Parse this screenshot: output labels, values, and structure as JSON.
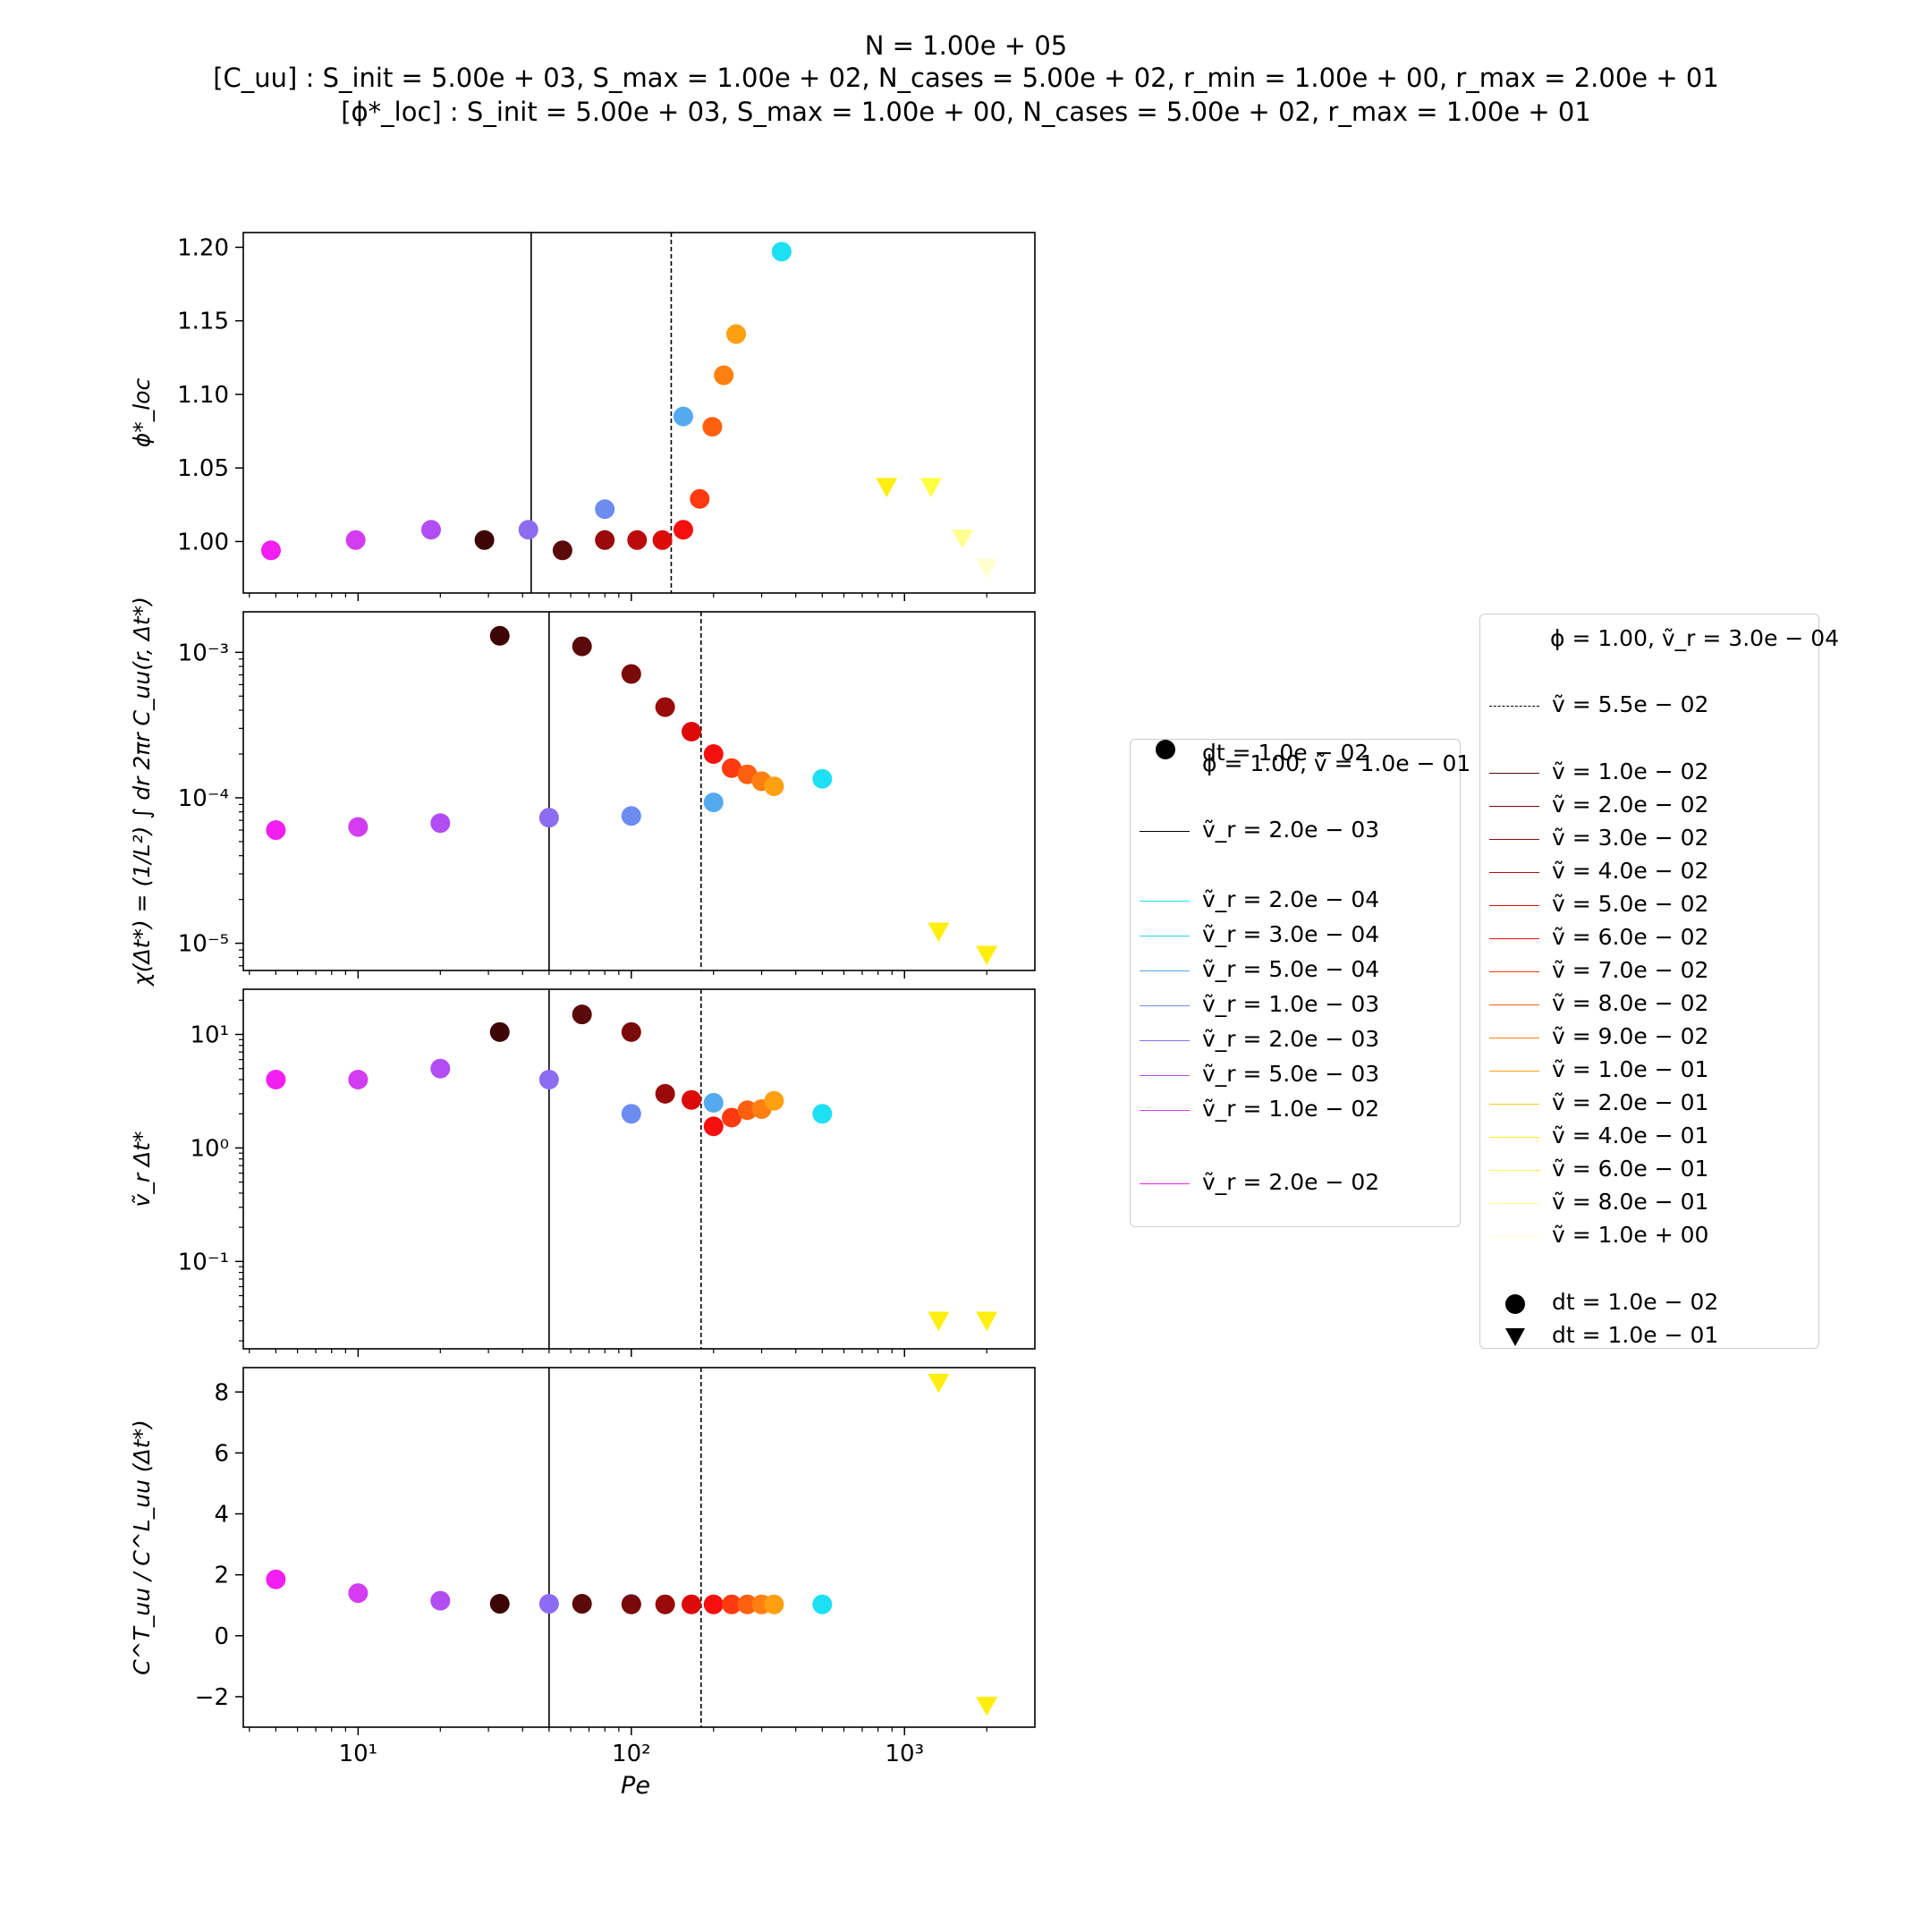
{
  "titles": [
    "N = 1.00e + 05",
    "[C_uu] : S_init = 5.00e + 03, S_max = 1.00e + 02, N_cases = 5.00e + 02, r_min = 1.00e + 00, r_max = 2.00e + 01",
    "[ϕ*_loc] : S_init = 5.00e + 03, S_max = 1.00e + 00, N_cases = 5.00e + 02, r_max = 1.00e + 01"
  ],
  "legend_left": {
    "title": "ϕ = 1.00, ṽ = 1.0e − 01",
    "entries": [
      {
        "label": "ṽ_r = 2.0e − 03",
        "kind": "line",
        "color": "#000000"
      },
      {
        "label": "ṽ_r = 2.0e − 04",
        "kind": "line",
        "color": "#1ee0f5"
      },
      {
        "label": "ṽ_r = 3.0e − 04",
        "kind": "line",
        "color": "#2ad2f2"
      },
      {
        "label": "ṽ_r = 5.0e − 04",
        "kind": "line",
        "color": "#55aaef"
      },
      {
        "label": "ṽ_r = 1.0e − 03",
        "kind": "line",
        "color": "#6c8cf0"
      },
      {
        "label": "ṽ_r = 2.0e − 03",
        "kind": "line",
        "color": "#8c6cf0"
      },
      {
        "label": "ṽ_r = 5.0e − 03",
        "kind": "line",
        "color": "#b14df2"
      },
      {
        "label": "ṽ_r = 1.0e − 02",
        "kind": "line",
        "color": "#d43cf2"
      },
      {
        "label": "ṽ_r = 2.0e − 02",
        "kind": "line",
        "color": "#f21ef2"
      },
      {
        "label": "dt = 1.0e − 02",
        "kind": "circle",
        "color": "#000000"
      }
    ]
  },
  "legend_right": {
    "title": "ϕ = 1.00, ṽ_r = 3.0e − 04",
    "entries": [
      {
        "label": "ṽ = 5.5e − 02",
        "kind": "dashed",
        "color": "#000000"
      },
      {
        "label": "ṽ = 1.0e − 02",
        "kind": "line",
        "color": "#5a0a0a"
      },
      {
        "label": "ṽ = 2.0e − 02",
        "kind": "line",
        "color": "#7a0a0a"
      },
      {
        "label": "ṽ = 3.0e − 02",
        "kind": "line",
        "color": "#990a0a"
      },
      {
        "label": "ṽ = 4.0e − 02",
        "kind": "line",
        "color": "#bb0a0a"
      },
      {
        "label": "ṽ = 5.0e − 02",
        "kind": "line",
        "color": "#dd0a0a"
      },
      {
        "label": "ṽ = 6.0e − 02",
        "kind": "line",
        "color": "#f50f0f"
      },
      {
        "label": "ṽ = 7.0e − 02",
        "kind": "line",
        "color": "#ff3a10"
      },
      {
        "label": "ṽ = 8.0e − 02",
        "kind": "line",
        "color": "#ff6010"
      },
      {
        "label": "ṽ = 9.0e − 02",
        "kind": "line",
        "color": "#ff8010"
      },
      {
        "label": "ṽ = 1.0e − 01",
        "kind": "line",
        "color": "#ffa010"
      },
      {
        "label": "ṽ = 2.0e − 01",
        "kind": "line",
        "color": "#ffcc10"
      },
      {
        "label": "ṽ = 4.0e − 01",
        "kind": "line",
        "color": "#ffee10"
      },
      {
        "label": "ṽ = 6.0e − 01",
        "kind": "line",
        "color": "#ffff40"
      },
      {
        "label": "ṽ = 8.0e − 01",
        "kind": "line",
        "color": "#ffff90"
      },
      {
        "label": "ṽ = 1.0e + 00",
        "kind": "line",
        "color": "#ffffd0"
      },
      {
        "label": "dt = 1.0e − 02",
        "kind": "circle",
        "color": "#000000"
      },
      {
        "label": "dt = 1.0e − 01",
        "kind": "triangle",
        "color": "#000000"
      }
    ]
  },
  "chart_data": [
    {
      "type": "scatter",
      "xscale": "log",
      "yscale": "linear",
      "xlim": [
        3.8,
        3000
      ],
      "ylim": [
        0.965,
        1.21
      ],
      "ylabel": "ϕ*_loc",
      "xlabel": "",
      "yticks": [
        1.0,
        1.05,
        1.1,
        1.15,
        1.2
      ],
      "ytick_labels": [
        "1.00",
        "1.05",
        "1.10",
        "1.15",
        "1.20"
      ],
      "vlines": [
        {
          "x": 43,
          "style": "solid"
        },
        {
          "x": 140,
          "style": "dashed"
        }
      ],
      "points": [
        {
          "x": 4.8,
          "y": 0.994,
          "color": "#f21ef2",
          "marker": "circle"
        },
        {
          "x": 9.8,
          "y": 1.001,
          "color": "#d43cf2",
          "marker": "circle"
        },
        {
          "x": 18.5,
          "y": 1.008,
          "color": "#b14df2",
          "marker": "circle"
        },
        {
          "x": 29,
          "y": 1.001,
          "color": "#3d0505",
          "marker": "circle"
        },
        {
          "x": 42,
          "y": 1.008,
          "color": "#8c6cf0",
          "marker": "circle"
        },
        {
          "x": 56,
          "y": 0.994,
          "color": "#5a0a0a",
          "marker": "circle"
        },
        {
          "x": 80,
          "y": 1.022,
          "color": "#6c8cf0",
          "marker": "circle"
        },
        {
          "x": 80,
          "y": 1.001,
          "color": "#990a0a",
          "marker": "circle"
        },
        {
          "x": 105,
          "y": 1.001,
          "color": "#bb0a0a",
          "marker": "circle"
        },
        {
          "x": 130,
          "y": 1.001,
          "color": "#dd0a0a",
          "marker": "circle"
        },
        {
          "x": 155,
          "y": 1.008,
          "color": "#f50f0f",
          "marker": "circle"
        },
        {
          "x": 155,
          "y": 1.085,
          "color": "#55aaef",
          "marker": "circle"
        },
        {
          "x": 178,
          "y": 1.029,
          "color": "#ff3a10",
          "marker": "circle"
        },
        {
          "x": 198,
          "y": 1.078,
          "color": "#ff6010",
          "marker": "circle"
        },
        {
          "x": 218,
          "y": 1.113,
          "color": "#ff8010",
          "marker": "circle"
        },
        {
          "x": 242,
          "y": 1.141,
          "color": "#ffa010",
          "marker": "circle"
        },
        {
          "x": 355,
          "y": 1.197,
          "color": "#1ee0f5",
          "marker": "circle"
        },
        {
          "x": 860,
          "y": 1.037,
          "color": "#ffee10",
          "marker": "triangle"
        },
        {
          "x": 1250,
          "y": 1.037,
          "color": "#ffff40",
          "marker": "triangle"
        },
        {
          "x": 1630,
          "y": 1.002,
          "color": "#ffff90",
          "marker": "triangle"
        },
        {
          "x": 2000,
          "y": 0.982,
          "color": "#ffffd0",
          "marker": "triangle"
        }
      ]
    },
    {
      "type": "scatter",
      "xscale": "log",
      "yscale": "log",
      "xlim": [
        3.8,
        3000
      ],
      "ylim": [
        6.5e-06,
        0.0019
      ],
      "ylabel": "χ(Δt*) = (1/L²) ∫ dr 2πr C_uu(r, Δt*)",
      "xlabel": "",
      "yticks": [
        1e-05,
        0.0001,
        0.001
      ],
      "ytick_labels": [
        "10⁻⁵",
        "10⁻⁴",
        "10⁻³"
      ],
      "vlines": [
        {
          "x": 50,
          "style": "solid"
        },
        {
          "x": 180,
          "style": "dashed"
        }
      ],
      "points": [
        {
          "x": 5,
          "y": 6e-05,
          "color": "#f21ef2",
          "marker": "circle"
        },
        {
          "x": 10,
          "y": 6.3e-05,
          "color": "#d43cf2",
          "marker": "circle"
        },
        {
          "x": 20,
          "y": 6.7e-05,
          "color": "#b14df2",
          "marker": "circle"
        },
        {
          "x": 33,
          "y": 0.0013,
          "color": "#3d0505",
          "marker": "circle"
        },
        {
          "x": 50,
          "y": 7.3e-05,
          "color": "#8c6cf0",
          "marker": "circle"
        },
        {
          "x": 66,
          "y": 0.0011,
          "color": "#5a0a0a",
          "marker": "circle"
        },
        {
          "x": 100,
          "y": 0.00071,
          "color": "#7a0a0a",
          "marker": "circle"
        },
        {
          "x": 100,
          "y": 7.5e-05,
          "color": "#6c8cf0",
          "marker": "circle"
        },
        {
          "x": 133,
          "y": 0.00042,
          "color": "#990a0a",
          "marker": "circle"
        },
        {
          "x": 166,
          "y": 0.000285,
          "color": "#dd0a0a",
          "marker": "circle"
        },
        {
          "x": 200,
          "y": 0.0002,
          "color": "#f50f0f",
          "marker": "circle"
        },
        {
          "x": 200,
          "y": 9.3e-05,
          "color": "#55aaef",
          "marker": "circle"
        },
        {
          "x": 233,
          "y": 0.00016,
          "color": "#ff3a10",
          "marker": "circle"
        },
        {
          "x": 266,
          "y": 0.000145,
          "color": "#ff6010",
          "marker": "circle"
        },
        {
          "x": 300,
          "y": 0.00013,
          "color": "#ff8010",
          "marker": "circle"
        },
        {
          "x": 333,
          "y": 0.00012,
          "color": "#ffa010",
          "marker": "circle"
        },
        {
          "x": 500,
          "y": 0.000135,
          "color": "#1ee0f5",
          "marker": "circle"
        },
        {
          "x": 1333,
          "y": 1.2e-05,
          "color": "#ffee10",
          "marker": "triangle"
        },
        {
          "x": 2000,
          "y": 8.3e-06,
          "color": "#ffee10",
          "marker": "triangle"
        }
      ]
    },
    {
      "type": "scatter",
      "xscale": "log",
      "yscale": "log",
      "xlim": [
        3.8,
        3000
      ],
      "ylim": [
        0.017,
        25
      ],
      "ylabel": "ṽ_r Δt*",
      "xlabel": "",
      "yticks": [
        0.1,
        1,
        10
      ],
      "ytick_labels": [
        "10⁻¹",
        "10⁰",
        "10¹"
      ],
      "vlines": [
        {
          "x": 50,
          "style": "solid"
        },
        {
          "x": 180,
          "style": "dashed"
        }
      ],
      "points": [
        {
          "x": 5,
          "y": 4.0,
          "color": "#f21ef2",
          "marker": "circle"
        },
        {
          "x": 10,
          "y": 4.0,
          "color": "#d43cf2",
          "marker": "circle"
        },
        {
          "x": 20,
          "y": 5.0,
          "color": "#b14df2",
          "marker": "circle"
        },
        {
          "x": 33,
          "y": 10.5,
          "color": "#3d0505",
          "marker": "circle"
        },
        {
          "x": 50,
          "y": 4.0,
          "color": "#8c6cf0",
          "marker": "circle"
        },
        {
          "x": 66,
          "y": 15.0,
          "color": "#5a0a0a",
          "marker": "circle"
        },
        {
          "x": 100,
          "y": 10.5,
          "color": "#7a0a0a",
          "marker": "circle"
        },
        {
          "x": 100,
          "y": 2.0,
          "color": "#6c8cf0",
          "marker": "circle"
        },
        {
          "x": 133,
          "y": 3.0,
          "color": "#990a0a",
          "marker": "circle"
        },
        {
          "x": 166,
          "y": 2.65,
          "color": "#dd0a0a",
          "marker": "circle"
        },
        {
          "x": 200,
          "y": 2.5,
          "color": "#55aaef",
          "marker": "circle"
        },
        {
          "x": 200,
          "y": 1.55,
          "color": "#f50f0f",
          "marker": "circle"
        },
        {
          "x": 233,
          "y": 1.85,
          "color": "#ff3a10",
          "marker": "circle"
        },
        {
          "x": 266,
          "y": 2.15,
          "color": "#ff6010",
          "marker": "circle"
        },
        {
          "x": 300,
          "y": 2.2,
          "color": "#ff8010",
          "marker": "circle"
        },
        {
          "x": 333,
          "y": 2.6,
          "color": "#ffa010",
          "marker": "circle"
        },
        {
          "x": 500,
          "y": 2.0,
          "color": "#1ee0f5",
          "marker": "circle"
        },
        {
          "x": 1333,
          "y": 0.03,
          "color": "#ffee10",
          "marker": "triangle"
        },
        {
          "x": 2000,
          "y": 0.03,
          "color": "#ffee10",
          "marker": "triangle"
        }
      ]
    },
    {
      "type": "scatter",
      "xscale": "log",
      "yscale": "linear",
      "xlim": [
        3.8,
        3000
      ],
      "ylim": [
        -3.0,
        8.8
      ],
      "ylabel": "C^T_uu / C^L_uu (Δt*)",
      "xlabel": "Pe",
      "yticks": [
        -2,
        0,
        2,
        4,
        6,
        8
      ],
      "ytick_labels": [
        "−2",
        "0",
        "2",
        "4",
        "6",
        "8"
      ],
      "xticks": [
        10,
        100,
        1000
      ],
      "xtick_labels": [
        "10¹",
        "10²",
        "10³"
      ],
      "vlines": [
        {
          "x": 50,
          "style": "solid"
        },
        {
          "x": 180,
          "style": "dashed"
        }
      ],
      "points": [
        {
          "x": 5,
          "y": 1.85,
          "color": "#f21ef2",
          "marker": "circle"
        },
        {
          "x": 10,
          "y": 1.4,
          "color": "#d43cf2",
          "marker": "circle"
        },
        {
          "x": 20,
          "y": 1.15,
          "color": "#b14df2",
          "marker": "circle"
        },
        {
          "x": 33,
          "y": 1.05,
          "color": "#3d0505",
          "marker": "circle"
        },
        {
          "x": 50,
          "y": 1.05,
          "color": "#8c6cf0",
          "marker": "circle"
        },
        {
          "x": 66,
          "y": 1.05,
          "color": "#5a0a0a",
          "marker": "circle"
        },
        {
          "x": 100,
          "y": 1.05,
          "color": "#6c8cf0",
          "marker": "circle"
        },
        {
          "x": 100,
          "y": 1.03,
          "color": "#7a0a0a",
          "marker": "circle"
        },
        {
          "x": 133,
          "y": 1.03,
          "color": "#990a0a",
          "marker": "circle"
        },
        {
          "x": 166,
          "y": 1.03,
          "color": "#dd0a0a",
          "marker": "circle"
        },
        {
          "x": 200,
          "y": 1.03,
          "color": "#f50f0f",
          "marker": "circle"
        },
        {
          "x": 233,
          "y": 1.03,
          "color": "#ff3a10",
          "marker": "circle"
        },
        {
          "x": 266,
          "y": 1.03,
          "color": "#ff6010",
          "marker": "circle"
        },
        {
          "x": 300,
          "y": 1.03,
          "color": "#ff8010",
          "marker": "circle"
        },
        {
          "x": 333,
          "y": 1.03,
          "color": "#ffa010",
          "marker": "circle"
        },
        {
          "x": 500,
          "y": 1.03,
          "color": "#1ee0f5",
          "marker": "circle"
        },
        {
          "x": 1333,
          "y": 8.3,
          "color": "#ffee10",
          "marker": "triangle"
        },
        {
          "x": 2000,
          "y": -2.3,
          "color": "#ffee10",
          "marker": "triangle"
        }
      ]
    }
  ]
}
